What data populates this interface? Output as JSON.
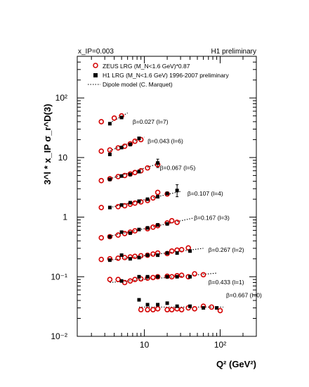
{
  "chart_data": {
    "type": "scatter",
    "title": "",
    "header_left": "x_IP=0.003",
    "header_right": "H1 preliminary",
    "xlabel": "Q² (GeV²)",
    "ylabel": "3^l * x_IP σ_r^D(3)",
    "x_scale": "log",
    "y_scale": "log",
    "xlim": [
      1.3,
      300
    ],
    "ylim": [
      0.01,
      500
    ],
    "x_ticks": [
      {
        "value": 10,
        "label": "10"
      },
      {
        "value": 100,
        "label": "10²"
      }
    ],
    "y_ticks": [
      {
        "value": 0.01,
        "label": "10⁻²"
      },
      {
        "value": 0.1,
        "label": "10⁻¹"
      },
      {
        "value": 1,
        "label": "1"
      },
      {
        "value": 10,
        "label": "10"
      },
      {
        "value": 100,
        "label": "10²"
      }
    ],
    "grid": false,
    "legend_placement": "top-left",
    "legend": [
      {
        "name": "ZEUS LRG (M_N<1.6 GeV)*0.87",
        "marker": "open-circle",
        "color": "#d40000"
      },
      {
        "name": "H1 LRG (M_N<1.6 GeV) 1996-2007 preliminary",
        "marker": "filled-square",
        "color": "#000000"
      },
      {
        "name": "Dipole model (C. Marquet)",
        "marker": "dotted-line",
        "color": "#000000"
      }
    ],
    "bins": [
      {
        "label": "β=0.027 (l=7)",
        "label_at": [
          7.0,
          37
        ],
        "zeus": [
          [
            2.7,
            40
          ],
          [
            4.0,
            46
          ],
          [
            5.0,
            50
          ]
        ],
        "h1": [
          [
            3.5,
            37
          ],
          [
            5.0,
            47
          ]
        ],
        "model": [
          [
            3.5,
            38
          ],
          [
            6.0,
            56
          ]
        ]
      },
      {
        "label": "β=0.043 (l=6)",
        "label_at": [
          11.0,
          17.5
        ],
        "zeus": [
          [
            2.7,
            12.8
          ],
          [
            3.5,
            13.4
          ],
          [
            4.5,
            14.5
          ],
          [
            5.5,
            15.5
          ],
          [
            6.5,
            17
          ],
          [
            7.5,
            18.8
          ],
          [
            9.0,
            20
          ]
        ],
        "h1": [
          [
            3.5,
            11.3
          ],
          [
            5.0,
            14.7
          ],
          [
            6.5,
            16.6
          ],
          [
            8.5,
            21
          ]
        ],
        "model": [
          [
            3.5,
            13
          ],
          [
            10.0,
            22
          ]
        ]
      },
      {
        "label": "β=0.067 (l=5)",
        "label_at": [
          16.0,
          6.2
        ],
        "zeus": [
          [
            2.7,
            4.1
          ],
          [
            3.5,
            4.4
          ],
          [
            4.5,
            4.8
          ],
          [
            5.5,
            5.0
          ],
          [
            6.5,
            5.3
          ],
          [
            7.5,
            5.6
          ],
          [
            9.0,
            6.0
          ],
          [
            11.0,
            6.7
          ],
          [
            15.0,
            7.6
          ]
        ],
        "h1": [
          [
            3.5,
            4.3
          ],
          [
            5.0,
            4.9
          ],
          [
            6.5,
            5.2
          ],
          [
            8.5,
            5.8
          ],
          [
            15.0,
            8.1
          ]
        ],
        "h1_err": [
          [
            15.0,
            6.8,
            9.4
          ]
        ],
        "model": [
          [
            3.5,
            4.4
          ],
          [
            16.0,
            8.0
          ]
        ]
      },
      {
        "label": "β=0.107 (l=4)",
        "label_at": [
          37.0,
          2.3
        ],
        "zeus": [
          [
            2.7,
            1.45
          ],
          [
            4.5,
            1.5
          ],
          [
            5.5,
            1.55
          ],
          [
            6.5,
            1.65
          ],
          [
            7.5,
            1.72
          ],
          [
            9.0,
            1.8
          ],
          [
            11.0,
            1.9
          ],
          [
            13.0,
            2.1
          ],
          [
            15.0,
            2.6
          ],
          [
            20.0,
            2.45
          ]
        ],
        "h1": [
          [
            3.5,
            1.45
          ],
          [
            5.0,
            1.6
          ],
          [
            6.5,
            1.75
          ],
          [
            8.5,
            1.85
          ],
          [
            11.0,
            2.0
          ],
          [
            15.0,
            2.2
          ],
          [
            20.0,
            2.5
          ],
          [
            27.0,
            2.8
          ]
        ],
        "h1_err": [
          [
            27.0,
            2.2,
            3.5
          ]
        ],
        "model": [
          [
            3.5,
            1.45
          ],
          [
            30.0,
            2.7
          ]
        ]
      },
      {
        "label": "β=0.167 (l=3)",
        "label_at": [
          45.0,
          0.9
        ],
        "zeus": [
          [
            2.7,
            0.45
          ],
          [
            3.5,
            0.47
          ],
          [
            4.5,
            0.5
          ],
          [
            5.5,
            0.53
          ],
          [
            6.5,
            0.56
          ],
          [
            7.5,
            0.59
          ],
          [
            11.0,
            0.64
          ],
          [
            13.0,
            0.68
          ],
          [
            15.0,
            0.72
          ],
          [
            20.0,
            0.8
          ],
          [
            23.0,
            0.87
          ],
          [
            27.0,
            0.82
          ]
        ],
        "h1": [
          [
            3.5,
            0.47
          ],
          [
            5.0,
            0.56
          ],
          [
            6.5,
            0.54
          ],
          [
            8.5,
            0.62
          ],
          [
            11.0,
            0.66
          ],
          [
            15.0,
            0.74
          ],
          [
            20.0,
            0.77
          ]
        ],
        "model": [
          [
            3.5,
            0.48
          ],
          [
            45.0,
            0.97
          ]
        ]
      },
      {
        "label": "β=0.267 (l=2)",
        "label_at": [
          70.0,
          0.26
        ],
        "zeus": [
          [
            2.7,
            0.195
          ],
          [
            3.5,
            0.2
          ],
          [
            4.5,
            0.205
          ],
          [
            5.5,
            0.21
          ],
          [
            6.5,
            0.215
          ],
          [
            7.5,
            0.22
          ],
          [
            9.0,
            0.225
          ],
          [
            11.0,
            0.23
          ],
          [
            13.0,
            0.24
          ],
          [
            15.0,
            0.25
          ],
          [
            20.0,
            0.245
          ],
          [
            23.0,
            0.27
          ],
          [
            27.0,
            0.28
          ],
          [
            31.0,
            0.285
          ],
          [
            38.0,
            0.305
          ]
        ],
        "h1": [
          [
            3.5,
            0.19
          ],
          [
            5.0,
            0.23
          ],
          [
            6.5,
            0.2
          ],
          [
            8.5,
            0.21
          ],
          [
            11.0,
            0.23
          ],
          [
            15.0,
            0.23
          ],
          [
            20.0,
            0.25
          ],
          [
            27.0,
            0.25
          ],
          [
            40.0,
            0.27
          ]
        ],
        "model": [
          [
            3.5,
            0.19
          ],
          [
            60.0,
            0.3
          ]
        ]
      },
      {
        "label": "β=0.433 (l=1)",
        "label_at": [
          70.0,
          0.075
        ],
        "zeus": [
          [
            3.5,
            0.09
          ],
          [
            4.5,
            0.09
          ],
          [
            5.5,
            0.08
          ],
          [
            6.5,
            0.085
          ],
          [
            7.5,
            0.09
          ],
          [
            9.0,
            0.092
          ],
          [
            11.0,
            0.095
          ],
          [
            13.0,
            0.097
          ],
          [
            15.0,
            0.1
          ],
          [
            20.0,
            0.102
          ],
          [
            23.0,
            0.1
          ],
          [
            27.0,
            0.104
          ],
          [
            31.0,
            0.106
          ],
          [
            38.0,
            0.1
          ],
          [
            46.0,
            0.112
          ],
          [
            60.0,
            0.108
          ]
        ],
        "h1": [
          [
            5.0,
            0.085
          ],
          [
            8.5,
            0.1
          ],
          [
            11.0,
            0.1
          ],
          [
            15.0,
            0.1
          ],
          [
            20.0,
            0.1
          ],
          [
            27.0,
            0.1
          ],
          [
            40.0,
            0.1
          ]
        ],
        "model": [
          [
            3.5,
            0.08
          ],
          [
            90.0,
            0.115
          ]
        ]
      },
      {
        "label": "β=0.667 (l=0)",
        "label_at": [
          120.0,
          0.045
        ],
        "zeus": [
          [
            9.0,
            0.028
          ],
          [
            11.0,
            0.028
          ],
          [
            13.0,
            0.028
          ],
          [
            15.0,
            0.029
          ],
          [
            20.0,
            0.028
          ],
          [
            23.0,
            0.028
          ],
          [
            27.0,
            0.029
          ],
          [
            31.0,
            0.028
          ],
          [
            38.0,
            0.03
          ],
          [
            46.0,
            0.029
          ],
          [
            60.0,
            0.032
          ],
          [
            77.0,
            0.031
          ],
          [
            100.0,
            0.027
          ]
        ],
        "h1": [
          [
            8.5,
            0.041
          ],
          [
            11.0,
            0.034
          ],
          [
            15.0,
            0.034
          ],
          [
            20.0,
            0.036
          ],
          [
            27.0,
            0.032
          ],
          [
            40.0,
            0.032
          ],
          [
            60.0,
            0.03
          ],
          [
            90.0,
            0.03
          ]
        ],
        "model": [
          [
            8.5,
            0.031
          ],
          [
            110.0,
            0.031
          ]
        ]
      }
    ]
  }
}
